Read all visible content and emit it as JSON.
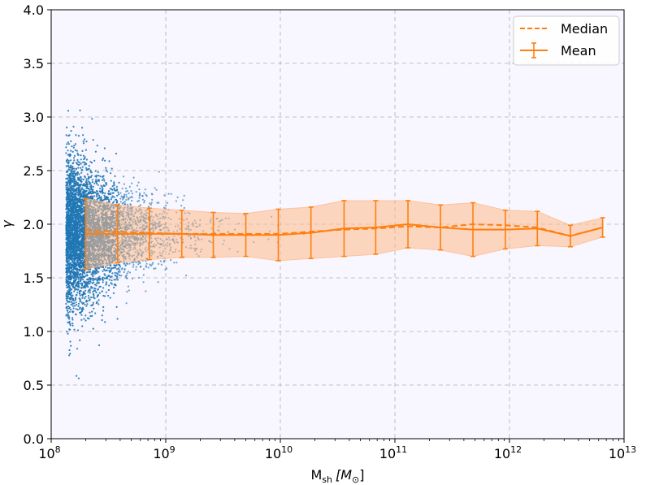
{
  "chart_data": {
    "type": "scatter",
    "title": "",
    "xlabel_main": "M",
    "xlabel_sub": "sh",
    "xlabel_unit": "[M",
    "xlabel_unit_sub": "⊙",
    "xlabel_close": "]",
    "ylabel": "γ",
    "xscale": "log",
    "xlim_exp": [
      8,
      13
    ],
    "ylim": [
      0.0,
      4.0
    ],
    "x_ticks": [
      {
        "exp": 8,
        "base": "10",
        "sup": "8"
      },
      {
        "exp": 9,
        "base": "10",
        "sup": "9"
      },
      {
        "exp": 10,
        "base": "10",
        "sup": "10"
      },
      {
        "exp": 11,
        "base": "10",
        "sup": "11"
      },
      {
        "exp": 12,
        "base": "10",
        "sup": "12"
      },
      {
        "exp": 13,
        "base": "10",
        "sup": "13"
      }
    ],
    "y_ticks": [
      "0.0",
      "0.5",
      "1.0",
      "1.5",
      "2.0",
      "2.5",
      "3.0",
      "3.5",
      "4.0"
    ],
    "grid": true,
    "legend_position": "top-right",
    "colors": {
      "scatter": "#1f77b4",
      "median": "#ff7f0e",
      "mean": "#ff7f0e",
      "band": "#ffb98a",
      "background": "#f8f6ff"
    },
    "series": [
      {
        "name": "Median",
        "style": "dashed",
        "x": [
          200000000.0,
          380000000.0,
          720000000.0,
          1380000000.0,
          2600000000.0,
          5000000000.0,
          9600000000.0,
          18500000000.0,
          36000000000.0,
          68000000000.0,
          130000000000.0,
          250000000000.0,
          480000000000.0,
          920000000000.0,
          1750000000000.0,
          3400000000000.0,
          6500000000000.0
        ],
        "values": [
          1.95,
          1.93,
          1.92,
          1.91,
          1.91,
          1.91,
          1.91,
          1.93,
          1.95,
          1.96,
          1.98,
          1.97,
          2.0,
          1.99,
          1.97,
          1.89,
          1.97
        ]
      },
      {
        "name": "Mean",
        "style": "solid-errorbar",
        "x": [
          200000000.0,
          380000000.0,
          720000000.0,
          1380000000.0,
          2600000000.0,
          5000000000.0,
          9600000000.0,
          18500000000.0,
          36000000000.0,
          68000000000.0,
          130000000000.0,
          250000000000.0,
          480000000000.0,
          920000000000.0,
          1750000000000.0,
          3400000000000.0,
          6500000000000.0
        ],
        "values": [
          1.91,
          1.91,
          1.91,
          1.91,
          1.9,
          1.9,
          1.9,
          1.92,
          1.96,
          1.97,
          2.0,
          1.97,
          1.95,
          1.95,
          1.96,
          1.89,
          1.97
        ],
        "errors": [
          0.33,
          0.27,
          0.24,
          0.22,
          0.21,
          0.2,
          0.24,
          0.24,
          0.26,
          0.25,
          0.22,
          0.21,
          0.25,
          0.18,
          0.16,
          0.1,
          0.09
        ]
      }
    ],
    "legend": [
      {
        "label": "Median",
        "style": "dashed"
      },
      {
        "label": "Mean",
        "style": "errorbar"
      }
    ]
  }
}
